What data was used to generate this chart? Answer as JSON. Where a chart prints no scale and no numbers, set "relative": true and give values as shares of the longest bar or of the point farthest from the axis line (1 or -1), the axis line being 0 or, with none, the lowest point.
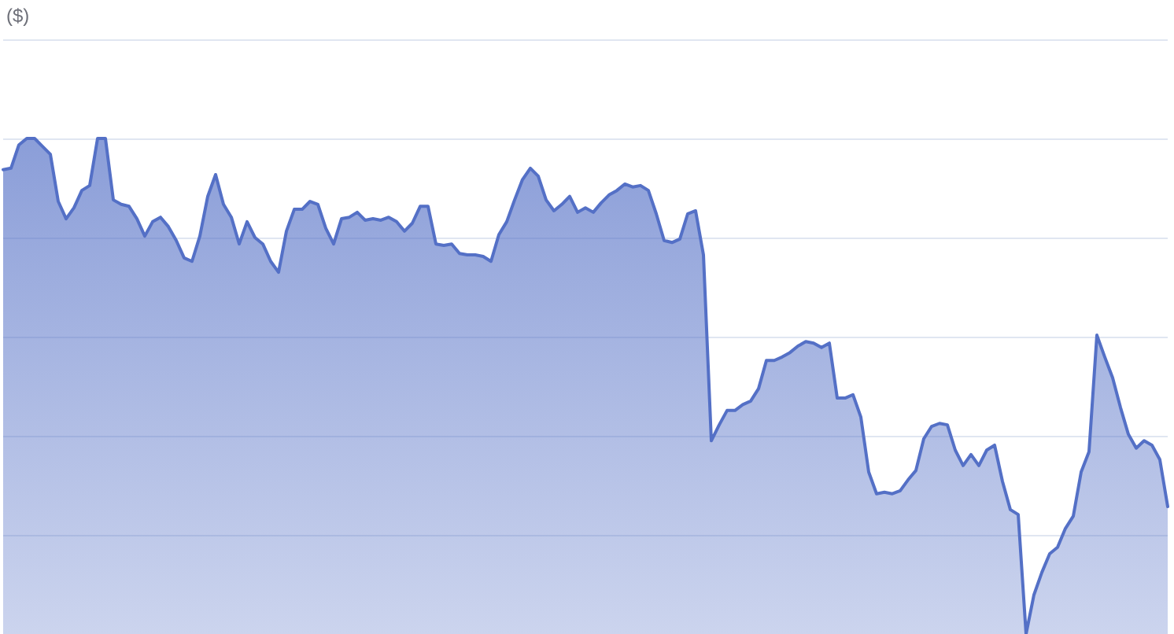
{
  "chart_data": {
    "type": "area",
    "annotations": [
      "($)"
    ],
    "relative": true,
    "grid": "y",
    "marker": "none",
    "line_style": "solid",
    "color": "#5470c6",
    "categories": [
      null,
      null,
      null,
      null,
      null,
      null,
      null,
      null,
      null,
      null,
      null,
      null,
      null,
      null,
      null,
      null,
      null,
      null,
      null,
      null,
      null,
      null,
      null,
      null,
      null,
      null,
      null,
      null,
      null,
      null,
      null,
      null,
      null,
      null,
      null,
      null,
      null,
      null,
      null,
      null,
      null,
      null,
      null,
      null,
      null,
      null,
      null,
      null,
      null,
      null,
      null,
      null,
      null,
      null,
      null,
      null,
      null,
      null,
      null,
      null,
      null,
      null,
      null,
      null,
      null,
      null,
      null,
      null,
      null,
      null,
      null,
      null,
      null,
      null,
      null,
      null,
      null,
      null,
      null,
      null,
      null,
      null,
      null,
      null,
      null,
      null,
      null,
      null,
      null,
      null,
      null,
      null,
      null,
      null,
      null,
      null,
      null,
      null,
      null,
      null,
      null,
      null,
      null,
      null,
      null,
      null,
      null,
      null,
      null,
      null,
      null,
      null,
      null,
      null,
      null,
      null,
      null,
      null,
      null,
      null,
      null,
      null,
      null,
      null,
      null,
      null,
      null,
      null,
      null,
      null,
      null,
      null,
      null,
      null,
      null,
      null,
      null,
      null,
      null,
      null,
      null,
      null,
      null,
      null,
      null,
      null,
      null,
      null,
      null
    ],
    "values": [
      0.937,
      0.94,
      0.987,
      1,
      1,
      0.984,
      0.968,
      0.873,
      0.838,
      0.86,
      0.895,
      0.905,
      1,
      1,
      0.876,
      0.867,
      0.863,
      0.838,
      0.803,
      0.832,
      0.841,
      0.822,
      0.794,
      0.759,
      0.752,
      0.803,
      0.883,
      0.927,
      0.867,
      0.841,
      0.787,
      0.832,
      0.8,
      0.787,
      0.752,
      0.73,
      0.813,
      0.857,
      0.857,
      0.873,
      0.867,
      0.819,
      0.787,
      0.838,
      0.841,
      0.851,
      0.835,
      0.838,
      0.835,
      0.841,
      0.832,
      0.813,
      0.829,
      0.863,
      0.863,
      0.787,
      0.784,
      0.787,
      0.768,
      0.765,
      0.765,
      0.762,
      0.752,
      0.806,
      0.832,
      0.876,
      0.917,
      0.94,
      0.924,
      0.876,
      0.854,
      0.867,
      0.883,
      0.851,
      0.86,
      0.851,
      0.87,
      0.886,
      0.895,
      0.908,
      0.902,
      0.905,
      0.895,
      0.848,
      0.794,
      0.79,
      0.797,
      0.848,
      0.854,
      0.765,
      0.39,
      0.422,
      0.451,
      0.451,
      0.463,
      0.47,
      0.495,
      0.552,
      0.552,
      0.559,
      0.568,
      0.581,
      0.59,
      0.587,
      0.578,
      0.587,
      0.476,
      0.476,
      0.483,
      0.438,
      0.327,
      0.283,
      0.286,
      0.283,
      0.289,
      0.311,
      0.33,
      0.394,
      0.419,
      0.425,
      0.422,
      0.371,
      0.34,
      0.362,
      0.34,
      0.371,
      0.381,
      0.308,
      0.251,
      0.241,
      0,
      0.079,
      0.124,
      0.162,
      0.175,
      0.213,
      0.238,
      0.327,
      0.368,
      0.603,
      0.559,
      0.517,
      0.457,
      0.403,
      0.375,
      0.39,
      0.381,
      0.352,
      0.257
    ]
  }
}
